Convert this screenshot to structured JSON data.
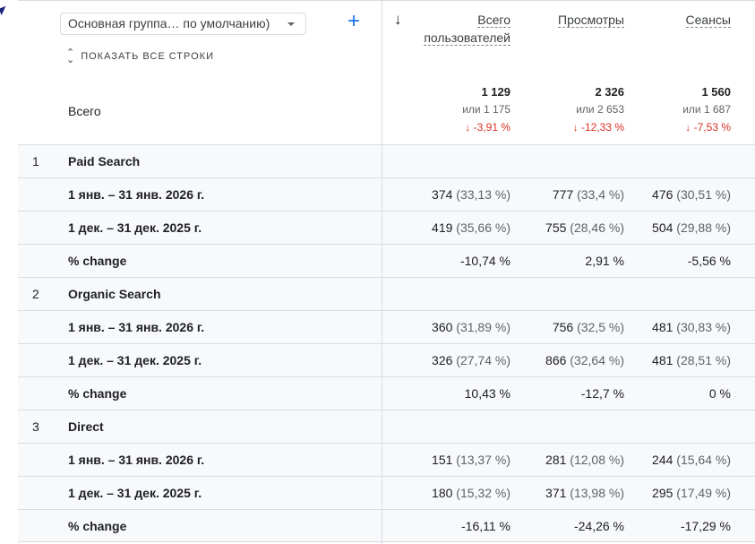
{
  "header": {
    "dimension_select": "Основная группа… по умолчанию)",
    "add_label": "+",
    "show_all": "ПОКАЗАТЬ ВСЕ СТРОКИ",
    "total_label": "Всего",
    "columns": [
      {
        "label": "Всего пользователей",
        "total": "1 129",
        "compare": "или 1 175",
        "change": "-3,91 %"
      },
      {
        "label": "Просмотры",
        "total": "2 326",
        "compare": "или 2 653",
        "change": "-12,33 %"
      },
      {
        "label": "Сеансы",
        "total": "1 560",
        "compare": "или 1 687",
        "change": "-7,53 %"
      }
    ]
  },
  "change_color": "#d93025",
  "groups": [
    {
      "index": "1",
      "name": "Paid Search",
      "rows": [
        {
          "label": "1 янв. – 31 янв. 2026 г.",
          "values": [
            [
              "374",
              "(33,13 %)"
            ],
            [
              "777",
              "(33,4 %)"
            ],
            [
              "476",
              "(30,51 %)"
            ]
          ]
        },
        {
          "label": "1 дек. – 31 дек. 2025 г.",
          "values": [
            [
              "419",
              "(35,66 %)"
            ],
            [
              "755",
              "(28,46 %)"
            ],
            [
              "504",
              "(29,88 %)"
            ]
          ]
        },
        {
          "label": "% change",
          "values": [
            [
              "-10,74 %",
              ""
            ],
            [
              "2,91 %",
              ""
            ],
            [
              "-5,56 %",
              ""
            ]
          ]
        }
      ]
    },
    {
      "index": "2",
      "name": "Organic Search",
      "rows": [
        {
          "label": "1 янв. – 31 янв. 2026 г.",
          "values": [
            [
              "360",
              "(31,89 %)"
            ],
            [
              "756",
              "(32,5 %)"
            ],
            [
              "481",
              "(30,83 %)"
            ]
          ]
        },
        {
          "label": "1 дек. – 31 дек. 2025 г.",
          "values": [
            [
              "326",
              "(27,74 %)"
            ],
            [
              "866",
              "(32,64 %)"
            ],
            [
              "481",
              "(28,51 %)"
            ]
          ]
        },
        {
          "label": "% change",
          "values": [
            [
              "10,43 %",
              ""
            ],
            [
              "-12,7 %",
              ""
            ],
            [
              "0 %",
              ""
            ]
          ]
        }
      ]
    },
    {
      "index": "3",
      "name": "Direct",
      "rows": [
        {
          "label": "1 янв. – 31 янв. 2026 г.",
          "values": [
            [
              "151",
              "(13,37 %)"
            ],
            [
              "281",
              "(12,08 %)"
            ],
            [
              "244",
              "(15,64 %)"
            ]
          ]
        },
        {
          "label": "1 дек. – 31 дек. 2025 г.",
          "values": [
            [
              "180",
              "(15,32 %)"
            ],
            [
              "371",
              "(13,98 %)"
            ],
            [
              "295",
              "(17,49 %)"
            ]
          ]
        },
        {
          "label": "% change",
          "values": [
            [
              "-16,11 %",
              ""
            ],
            [
              "-24,26 %",
              ""
            ],
            [
              "-17,29 %",
              ""
            ]
          ]
        }
      ]
    }
  ]
}
